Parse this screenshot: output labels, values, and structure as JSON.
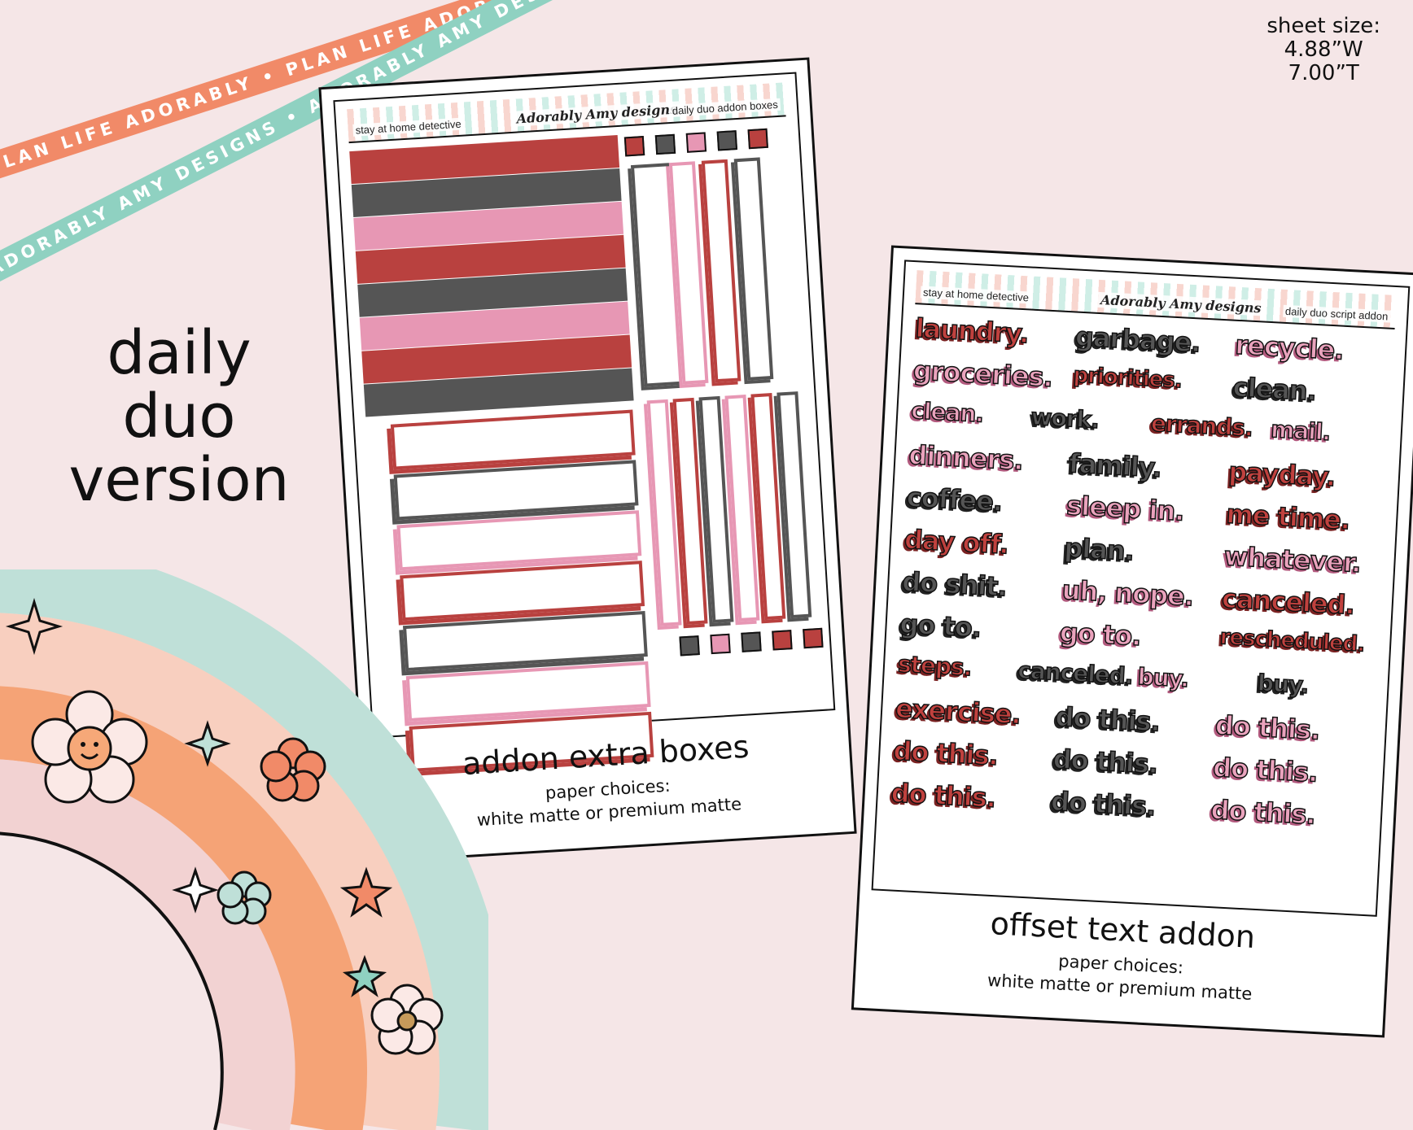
{
  "ribbons": {
    "top": "PLAN LIFE ADORABLY • PLAN LIFE ADORABLY • PLAN LIFE ADORABLY",
    "bottom": "ADORABLY AMY DESIGNS • ADORABLY AMY DESIGNS • ADORABLY AMY DESIGNS"
  },
  "title": {
    "line1": "daily",
    "line2": "duo",
    "line3": "version"
  },
  "sheet_size": {
    "label": "sheet size:",
    "width": "4.88”W",
    "height": "7.00”T"
  },
  "sheet1": {
    "header_left": "stay at home detective",
    "header_logo": "Adorably Amy designs",
    "header_right": "daily duo addon boxes",
    "caption_title": "addon extra boxes",
    "caption_sub1": "paper choices:",
    "caption_sub2": "white matte or premium matte"
  },
  "sheet2": {
    "header_left": "stay at home detective",
    "header_logo": "Adorably Amy designs",
    "header_right": "daily duo script addon",
    "caption_title": "offset text addon",
    "caption_sub1": "paper choices:",
    "caption_sub2": "white matte or premium matte",
    "words": [
      {
        "text": "laundry.",
        "c": "red"
      },
      {
        "text": "garbage.",
        "c": "grey"
      },
      {
        "text": "recycle.",
        "c": "pink"
      },
      {
        "text": "groceries.",
        "c": "pink"
      },
      {
        "text": "priorities.",
        "c": "red"
      },
      {
        "text": "clean.",
        "c": "grey"
      },
      {
        "text": "clean.",
        "c": "pink"
      },
      {
        "text": "work.",
        "c": "grey"
      },
      {
        "text": "errands.",
        "c": "red"
      },
      {
        "text": "mail.",
        "c": "pink"
      },
      {
        "text": "dinners.",
        "c": "pink"
      },
      {
        "text": "family.",
        "c": "grey"
      },
      {
        "text": "payday.",
        "c": "red"
      },
      {
        "text": "coffee.",
        "c": "grey"
      },
      {
        "text": "sleep in.",
        "c": "pink"
      },
      {
        "text": "me time.",
        "c": "red"
      },
      {
        "text": "day off.",
        "c": "red"
      },
      {
        "text": "plan.",
        "c": "grey"
      },
      {
        "text": "whatever.",
        "c": "pink"
      },
      {
        "text": "do shit.",
        "c": "grey"
      },
      {
        "text": "uh, nope.",
        "c": "pink"
      },
      {
        "text": "canceled.",
        "c": "red"
      },
      {
        "text": "go to.",
        "c": "grey"
      },
      {
        "text": "go to.",
        "c": "pink"
      },
      {
        "text": "rescheduled.",
        "c": "red"
      },
      {
        "text": "steps.",
        "c": "red"
      },
      {
        "text": "canceled.",
        "c": "grey"
      },
      {
        "text": "buy.",
        "c": "pink"
      },
      {
        "text": "buy.",
        "c": "grey"
      },
      {
        "text": "exercise.",
        "c": "red"
      },
      {
        "text": "do this.",
        "c": "grey"
      },
      {
        "text": "do this.",
        "c": "pink"
      },
      {
        "text": "do this.",
        "c": "red"
      },
      {
        "text": "do this.",
        "c": "grey"
      },
      {
        "text": "do this.",
        "c": "pink"
      },
      {
        "text": "do this.",
        "c": "red"
      },
      {
        "text": "do this.",
        "c": "grey"
      },
      {
        "text": "do this.",
        "c": "pink"
      }
    ]
  },
  "colors": {
    "red": "#b9413f",
    "grey": "#555555",
    "pink": "#e797b4",
    "bg": "#f5e6e7"
  }
}
